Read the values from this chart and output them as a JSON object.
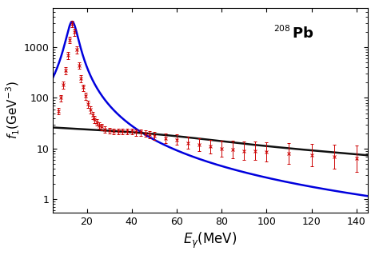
{
  "xlabel": "$E_{\\gamma}$(MeV)",
  "ylabel": "$f_1$(GeV$^{-3}$)",
  "annotation_super": "208",
  "annotation_main": "Pb",
  "xlim": [
    5,
    145
  ],
  "ylim": [
    0.55,
    6000
  ],
  "xticks": [
    20,
    40,
    60,
    80,
    100,
    120,
    140
  ],
  "blue_curve": {
    "E0": 13.5,
    "sigma0": 3200,
    "Gamma": 5.0
  },
  "black_curve": {
    "A": 26.0,
    "decay": 115.0,
    "peak_A": 0.15,
    "peak_E0": 48.0,
    "peak_sigma": 28.0
  },
  "data_points": {
    "x": [
      7.5,
      8.5,
      9.5,
      10.5,
      11.5,
      12.5,
      13.5,
      14.5,
      15.5,
      16.5,
      17.5,
      18.5,
      19.5,
      20.5,
      21.5,
      22.5,
      23.5,
      24.5,
      25.5,
      26.5,
      28,
      30,
      32,
      34,
      36,
      38,
      40,
      42,
      44,
      46,
      48,
      50,
      55,
      60,
      65,
      70,
      75,
      80,
      85,
      90,
      95,
      100,
      110,
      120,
      130,
      140
    ],
    "y": [
      55,
      100,
      180,
      350,
      700,
      1400,
      2900,
      2000,
      900,
      440,
      240,
      160,
      110,
      75,
      58,
      45,
      38,
      33,
      29,
      27,
      24,
      23,
      22,
      22,
      22,
      22,
      22,
      21,
      21,
      20,
      19,
      18,
      16,
      15,
      13,
      12,
      11,
      10,
      9.5,
      9,
      9,
      8.5,
      8,
      7.5,
      7,
      6.5
    ],
    "yerr_lo": [
      8,
      15,
      30,
      55,
      110,
      200,
      450,
      320,
      140,
      70,
      40,
      25,
      18,
      12,
      9,
      7,
      6,
      5,
      4,
      4,
      3.5,
      3,
      3,
      3,
      3,
      3,
      3,
      3,
      3,
      3,
      3,
      3,
      3,
      3,
      3,
      3,
      3,
      3,
      3,
      3,
      3,
      3,
      3,
      3,
      3,
      3
    ],
    "yerr_hi": [
      8,
      15,
      30,
      55,
      110,
      200,
      450,
      320,
      140,
      70,
      40,
      25,
      18,
      12,
      9,
      7,
      6,
      5,
      4,
      4,
      3.5,
      3,
      3,
      3,
      3,
      3,
      3,
      3,
      3,
      3,
      3,
      3,
      3.5,
      4,
      4,
      4,
      4,
      4.5,
      5,
      5,
      5,
      5,
      5,
      5,
      5,
      5
    ]
  },
  "blue_color": "#0000dd",
  "black_color": "#111111",
  "data_color": "#cc0000",
  "bg_color": "#ffffff",
  "figsize": [
    4.74,
    3.24
  ],
  "dpi": 100
}
